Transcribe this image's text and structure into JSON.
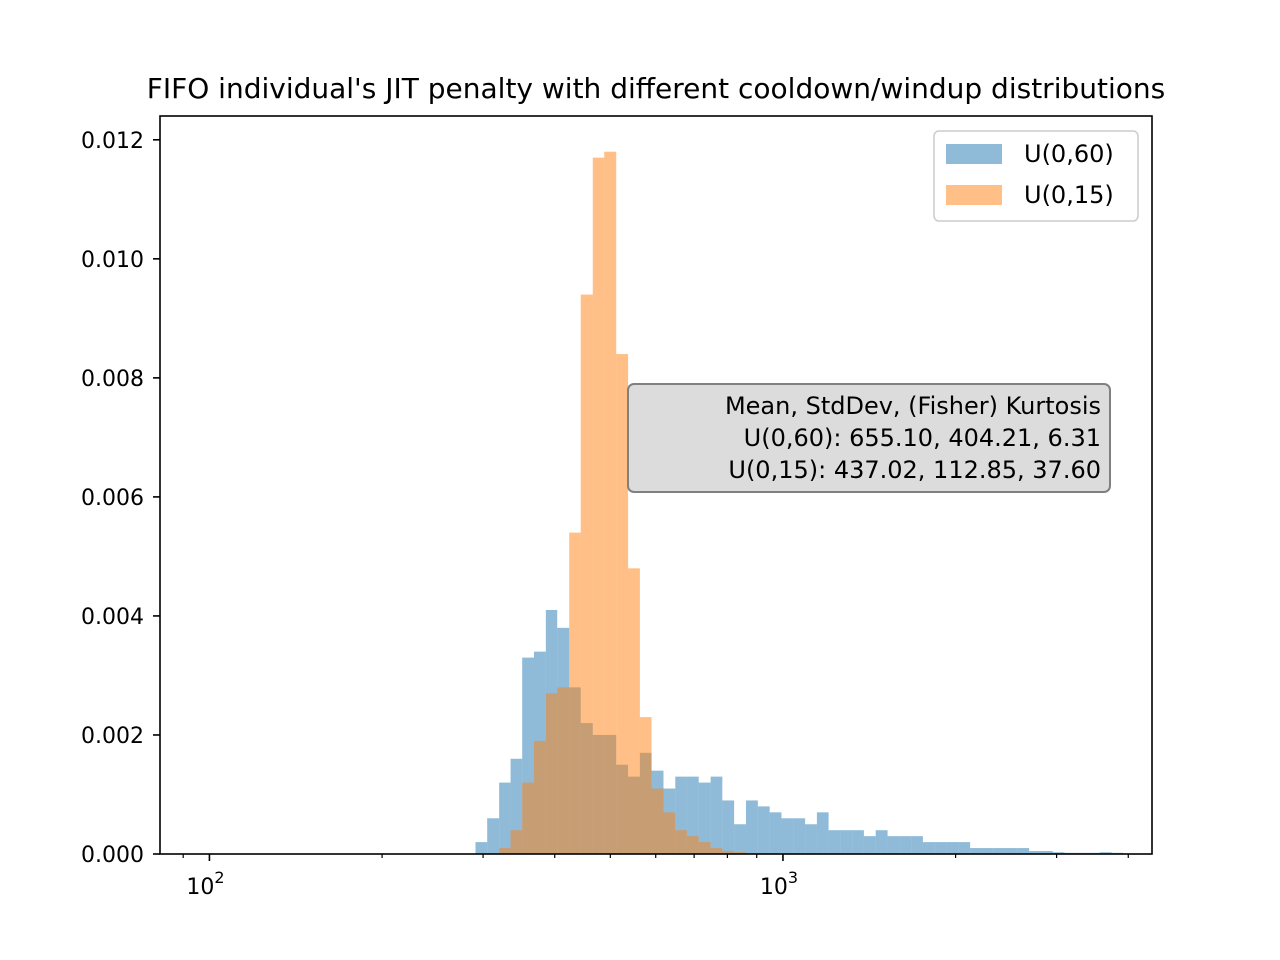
{
  "chart_data": {
    "type": "bar",
    "title": "FIFO individual's JIT penalty with different cooldown/windup distributions",
    "xlabel": "",
    "ylabel": "",
    "xscale": "log",
    "xlim": [
      82,
      4400
    ],
    "ylim": [
      0,
      0.0124
    ],
    "x_ticks": [
      {
        "value": 100,
        "base": "10",
        "exp": "2"
      },
      {
        "value": 1000,
        "base": "10",
        "exp": "3"
      }
    ],
    "y_ticks": [
      {
        "value": 0.0,
        "label": "0.000"
      },
      {
        "value": 0.002,
        "label": "0.002"
      },
      {
        "value": 0.004,
        "label": "0.004"
      },
      {
        "value": 0.006,
        "label": "0.006"
      },
      {
        "value": 0.008,
        "label": "0.008"
      },
      {
        "value": 0.01,
        "label": "0.010"
      },
      {
        "value": 0.012,
        "label": "0.012"
      }
    ],
    "grid": false,
    "legend_position": "top-right",
    "series": [
      {
        "name": "U(0,60)",
        "color": "#1f77b4",
        "alpha": 0.5,
        "bins": [
          [
            291,
            305,
            0.0002
          ],
          [
            305,
            320,
            0.0006
          ],
          [
            320,
            335,
            0.0012
          ],
          [
            335,
            351,
            0.0016
          ],
          [
            351,
            368,
            0.0033
          ],
          [
            368,
            386,
            0.0034
          ],
          [
            386,
            404,
            0.0041
          ],
          [
            404,
            424,
            0.0038
          ],
          [
            424,
            444,
            0.0028
          ],
          [
            444,
            466,
            0.0022
          ],
          [
            466,
            488,
            0.002
          ],
          [
            488,
            512,
            0.002
          ],
          [
            512,
            537,
            0.0015
          ],
          [
            537,
            563,
            0.0013
          ],
          [
            563,
            590,
            0.0017
          ],
          [
            590,
            619,
            0.0014
          ],
          [
            619,
            649,
            0.0011
          ],
          [
            649,
            680,
            0.0013
          ],
          [
            680,
            713,
            0.0013
          ],
          [
            713,
            748,
            0.0012
          ],
          [
            748,
            784,
            0.0013
          ],
          [
            784,
            822,
            0.0009
          ],
          [
            822,
            862,
            0.0005
          ],
          [
            862,
            904,
            0.0009
          ],
          [
            904,
            948,
            0.0008
          ],
          [
            948,
            994,
            0.0007
          ],
          [
            994,
            1042,
            0.0006
          ],
          [
            1042,
            1093,
            0.0006
          ],
          [
            1093,
            1146,
            0.0005
          ],
          [
            1146,
            1201,
            0.0007
          ],
          [
            1201,
            1259,
            0.0004
          ],
          [
            1259,
            1320,
            0.0004
          ],
          [
            1320,
            1384,
            0.0004
          ],
          [
            1384,
            1451,
            0.0003
          ],
          [
            1451,
            1522,
            0.0004
          ],
          [
            1522,
            1596,
            0.0003
          ],
          [
            1596,
            1673,
            0.0003
          ],
          [
            1673,
            1754,
            0.0003
          ],
          [
            1754,
            1839,
            0.0002
          ],
          [
            1839,
            1929,
            0.0002
          ],
          [
            1929,
            2022,
            0.0002
          ],
          [
            2022,
            2120,
            0.0002
          ],
          [
            2120,
            2223,
            0.0001
          ],
          [
            2223,
            2331,
            0.0001
          ],
          [
            2331,
            2444,
            0.0001
          ],
          [
            2444,
            2562,
            0.0001
          ],
          [
            2562,
            2687,
            0.0001
          ],
          [
            2687,
            2817,
            5e-05
          ],
          [
            2817,
            2953,
            5e-05
          ],
          [
            2953,
            3096,
            3e-05
          ],
          [
            3096,
            3246,
            2e-05
          ],
          [
            3246,
            3403,
            2e-05
          ],
          [
            3403,
            3568,
            2e-05
          ],
          [
            3568,
            3741,
            3e-05
          ],
          [
            3741,
            3922,
            2e-05
          ]
        ]
      },
      {
        "name": "U(0,15)",
        "color": "#ff7f0e",
        "alpha": 0.5,
        "bins": [
          [
            320,
            335,
            0.0001
          ],
          [
            335,
            351,
            0.0004
          ],
          [
            351,
            368,
            0.0012
          ],
          [
            368,
            386,
            0.0019
          ],
          [
            386,
            404,
            0.0027
          ],
          [
            404,
            424,
            0.0028
          ],
          [
            424,
            444,
            0.0054
          ],
          [
            444,
            466,
            0.0094
          ],
          [
            466,
            488,
            0.0117
          ],
          [
            488,
            512,
            0.0118
          ],
          [
            512,
            537,
            0.0084
          ],
          [
            537,
            563,
            0.0048
          ],
          [
            563,
            590,
            0.0023
          ],
          [
            590,
            619,
            0.0011
          ],
          [
            619,
            649,
            0.0007
          ],
          [
            649,
            680,
            0.0004
          ],
          [
            680,
            713,
            0.0003
          ],
          [
            713,
            748,
            0.0002
          ],
          [
            748,
            784,
            0.0001
          ],
          [
            784,
            822,
            5e-05
          ],
          [
            822,
            862,
            3e-05
          ]
        ]
      }
    ],
    "annotation": {
      "lines": [
        "Mean, StdDev, (Fisher) Kurtosis",
        "U(0,60): 655.10, 404.21, 6.31",
        "U(0,15): 437.02, 112.85, 37.60"
      ],
      "position": "center-right",
      "background": "#dcdcdc",
      "border": "#808080"
    }
  }
}
